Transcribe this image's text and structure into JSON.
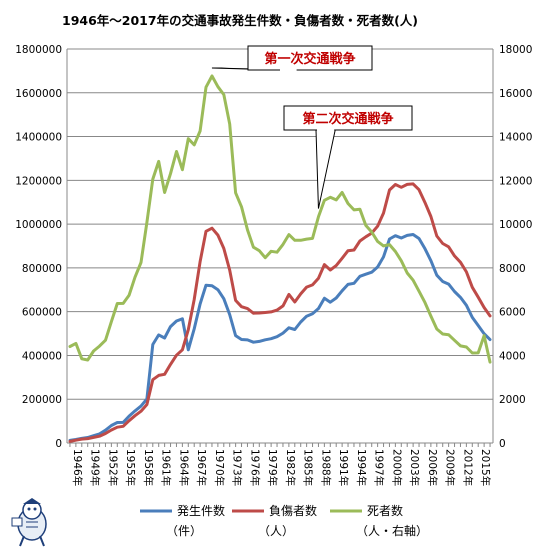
{
  "chart_data": {
    "type": "line",
    "title": "1946年～2017年の交通事故発生件数・負傷者数・死者数(人)",
    "x": [
      1946,
      1947,
      1948,
      1949,
      1950,
      1951,
      1952,
      1953,
      1954,
      1955,
      1956,
      1957,
      1958,
      1959,
      1960,
      1961,
      1962,
      1963,
      1964,
      1965,
      1966,
      1967,
      1968,
      1969,
      1970,
      1971,
      1972,
      1973,
      1974,
      1975,
      1976,
      1977,
      1978,
      1979,
      1980,
      1981,
      1982,
      1983,
      1984,
      1985,
      1986,
      1987,
      1988,
      1989,
      1990,
      1991,
      1992,
      1993,
      1994,
      1995,
      1996,
      1997,
      1998,
      1999,
      2000,
      2001,
      2002,
      2003,
      2004,
      2005,
      2006,
      2007,
      2008,
      2009,
      2010,
      2011,
      2012,
      2013,
      2014,
      2015,
      2016,
      2017
    ],
    "x_tick_labels": [
      "1946年",
      "1949年",
      "1952年",
      "1955年",
      "1958年",
      "1961年",
      "1964年",
      "1967年",
      "1970年",
      "1973年",
      "1976年",
      "1979年",
      "1982年",
      "1985年",
      "1988年",
      "1991年",
      "1994年",
      "1997年",
      "2000年",
      "2003年",
      "2006年",
      "2009年",
      "2012年",
      "2015年"
    ],
    "y_left": {
      "min": 0,
      "max": 1800000,
      "ticks": [
        "0",
        "200000",
        "400000",
        "600000",
        "800000",
        "1000000",
        "1200000",
        "1400000",
        "1600000",
        "1800000"
      ]
    },
    "y_right": {
      "min": 0,
      "max": 18000,
      "ticks": [
        "0",
        "2000",
        "4000",
        "6000",
        "8000",
        "10000",
        "12000",
        "14000",
        "16000",
        "18000"
      ]
    },
    "grid": true,
    "series": [
      {
        "name": "発生件数（件）",
        "axis": "left",
        "color": "#4a7ebb",
        "values": [
          12504,
          16000,
          21341,
          25113,
          33212,
          41423,
          58487,
          80019,
          93869,
          93981,
          122691,
          146833,
          168799,
          201292,
          449917,
          493693,
          479825,
          531966,
          557183,
          567286,
          425944,
          521481,
          635056,
          720880,
          718080,
          700290,
          659283,
          586713,
          490452,
          472938,
          471041,
          460649,
          464037,
          471573,
          476677,
          485578,
          502261,
          526362,
          518642,
          552788,
          579190,
          590723,
          614481,
          661363,
          643097,
          662388,
          695345,
          724675,
          729457,
          761794,
          771085,
          780401,
          803878,
          850363,
          931950,
          947253,
          936721,
          948281,
          952720,
          934346,
          887267,
          832691,
          766394,
          737637,
          725924,
          692084,
          665157,
          629033,
          573842,
          536899,
          499201,
          472165
        ]
      },
      {
        "name": "負傷者数（人）",
        "axis": "left",
        "color": "#be4b48",
        "values": [
          7093,
          13000,
          17609,
          20242,
          25450,
          31274,
          43321,
          59280,
          72390,
          76501,
          102072,
          124530,
          145432,
          175951,
          289156,
          308697,
          313813,
          359089,
          401117,
          425666,
          517775,
          655377,
          828071,
          967000,
          981096,
          949689,
          889198,
          789948,
          651420,
          622467,
          613957,
          593211,
          594116,
          596282,
          598719,
          607346,
          626192,
          678985,
          644321,
          681346,
          712330,
          722179,
          752845,
          814832,
          790295,
          810245,
          844003,
          878633,
          881723,
          922677,
          942204,
          958925,
          990675,
          1050399,
          1155697,
          1181039,
          1168029,
          1181431,
          1183617,
          1157113,
          1098199,
          1034652,
          945504,
          911215,
          896208,
          854613,
          825392,
          781492,
          711374,
          666023,
          618853,
          580850
        ]
      },
      {
        "name": "死者数（人・右軸）",
        "axis": "right",
        "color": "#9bbb59",
        "values": [
          4409,
          4552,
          3848,
          3790,
          4202,
          4429,
          4696,
          5544,
          6374,
          6379,
          6751,
          7575,
          8248,
          10079,
          12055,
          12865,
          11445,
          12301,
          13318,
          12484,
          13904,
          13618,
          14256,
          16257,
          16765,
          16278,
          15918,
          14574,
          11432,
          10792,
          9734,
          8945,
          8783,
          8466,
          8760,
          8719,
          9073,
          9520,
          9262,
          9261,
          9317,
          9347,
          10344,
          11086,
          11227,
          11105,
          11451,
          10942,
          10649,
          10679,
          9942,
          9640,
          9211,
          9006,
          9066,
          8747,
          8326,
          7768,
          7436,
          6937,
          6415,
          5796,
          5209,
          4979,
          4948,
          4691,
          4438,
          4388,
          4113,
          4117,
          4904,
          3694
        ]
      }
    ],
    "annotations": [
      {
        "text": "第一次交通戦争",
        "points_to_year": 1970
      },
      {
        "text": "第二次交通戦争",
        "points_to_year": 1988
      }
    ],
    "legend": {
      "placement": "bottom",
      "items": [
        {
          "line1": "発生件数",
          "line2": "（件）"
        },
        {
          "line1": "負傷者数",
          "line2": "（人）"
        },
        {
          "line1": "死者数",
          "line2": "（人・右軸）"
        }
      ]
    }
  },
  "colors": {
    "title": "#000000",
    "annotation_text": "#c00000",
    "grid": "#888888",
    "axis": "#888888"
  },
  "logo_icon": "mascot-logo-icon"
}
